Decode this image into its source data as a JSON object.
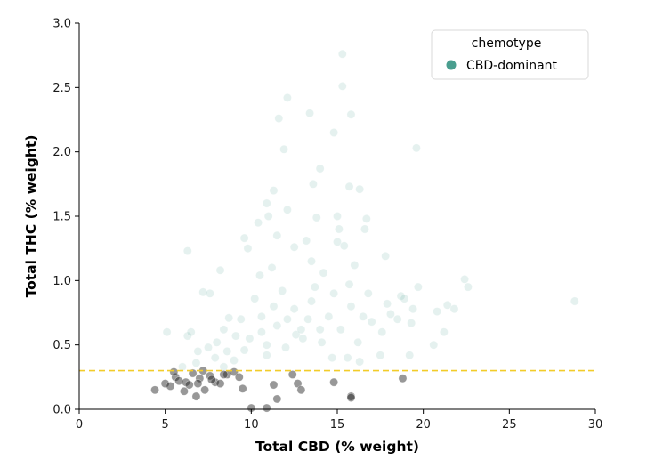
{
  "chart_data": {
    "type": "scatter",
    "xlabel": "Total CBD (% weight)",
    "ylabel": "Total THC (% weight)",
    "xlim": [
      0,
      30
    ],
    "ylim": [
      0,
      3.0
    ],
    "xticks": [
      0,
      5,
      10,
      15,
      20,
      25,
      30
    ],
    "xtick_labels": [
      "0",
      "5",
      "10",
      "15",
      "20",
      "25",
      "30"
    ],
    "yticks": [
      0.0,
      0.5,
      1.0,
      1.5,
      2.0,
      2.5,
      3.0
    ],
    "ytick_labels": [
      "0.0",
      "0.5",
      "1.0",
      "1.5",
      "2.0",
      "2.5",
      "3.0"
    ],
    "grid": false,
    "legend": {
      "title": "chemotype",
      "position": "top-right",
      "entries": [
        {
          "label": "CBD-dominant",
          "color": "#4a9e8f"
        }
      ]
    },
    "threshold_line": {
      "y": 0.3,
      "style": "dashed",
      "color": "#f2cc2a"
    },
    "series": [
      {
        "name": "CBD-dominant",
        "color": "#4a9e8f",
        "opacity": 0.14,
        "points": [
          [
            15.3,
            2.76
          ],
          [
            15.3,
            2.51
          ],
          [
            12.1,
            2.42
          ],
          [
            13.4,
            2.3
          ],
          [
            11.6,
            2.26
          ],
          [
            15.8,
            2.29
          ],
          [
            14.8,
            2.15
          ],
          [
            19.6,
            2.03
          ],
          [
            11.9,
            2.02
          ],
          [
            14.0,
            1.87
          ],
          [
            13.6,
            1.75
          ],
          [
            11.3,
            1.7
          ],
          [
            15.7,
            1.73
          ],
          [
            16.3,
            1.71
          ],
          [
            10.9,
            1.6
          ],
          [
            12.1,
            1.55
          ],
          [
            11.0,
            1.5
          ],
          [
            13.8,
            1.49
          ],
          [
            15.0,
            1.5
          ],
          [
            16.7,
            1.48
          ],
          [
            10.4,
            1.45
          ],
          [
            15.1,
            1.4
          ],
          [
            16.6,
            1.4
          ],
          [
            15.0,
            1.3
          ],
          [
            9.6,
            1.33
          ],
          [
            11.5,
            1.35
          ],
          [
            13.2,
            1.31
          ],
          [
            6.3,
            1.23
          ],
          [
            17.8,
            1.19
          ],
          [
            9.8,
            1.25
          ],
          [
            12.5,
            1.26
          ],
          [
            15.4,
            1.27
          ],
          [
            11.2,
            1.1
          ],
          [
            10.5,
            1.04
          ],
          [
            13.5,
            1.15
          ],
          [
            16.0,
            1.12
          ],
          [
            14.2,
            1.06
          ],
          [
            8.2,
            1.08
          ],
          [
            7.2,
            0.91
          ],
          [
            7.6,
            0.9
          ],
          [
            18.7,
            0.88
          ],
          [
            19.7,
            0.95
          ],
          [
            22.6,
            0.95
          ],
          [
            22.4,
            1.01
          ],
          [
            21.4,
            0.81
          ],
          [
            28.8,
            0.84
          ],
          [
            20.8,
            0.76
          ],
          [
            21.8,
            0.78
          ],
          [
            5.1,
            0.6
          ],
          [
            6.3,
            0.57
          ],
          [
            6.5,
            0.6
          ],
          [
            6.9,
            0.45
          ],
          [
            7.5,
            0.48
          ],
          [
            8.0,
            0.52
          ],
          [
            8.4,
            0.62
          ],
          [
            8.7,
            0.71
          ],
          [
            9.4,
            0.7
          ],
          [
            9.1,
            0.57
          ],
          [
            10.6,
            0.72
          ],
          [
            10.2,
            0.86
          ],
          [
            21.2,
            0.6
          ],
          [
            17.5,
            0.42
          ],
          [
            16.3,
            0.37
          ],
          [
            19.2,
            0.42
          ],
          [
            20.6,
            0.5
          ],
          [
            14.7,
            0.4
          ],
          [
            15.6,
            0.4
          ],
          [
            9.0,
            0.38
          ],
          [
            8.4,
            0.33
          ],
          [
            6.8,
            0.36
          ],
          [
            7.9,
            0.4
          ],
          [
            6.0,
            0.33
          ],
          [
            11.5,
            0.65
          ],
          [
            12.5,
            0.78
          ],
          [
            13.5,
            0.84
          ],
          [
            14.8,
            0.9
          ],
          [
            15.7,
            0.97
          ],
          [
            11.8,
            0.92
          ],
          [
            12.6,
            0.58
          ],
          [
            13.0,
            0.55
          ],
          [
            12.0,
            0.48
          ],
          [
            10.9,
            0.42
          ],
          [
            14.0,
            0.62
          ],
          [
            16.5,
            0.72
          ],
          [
            17.0,
            0.68
          ],
          [
            18.1,
            0.74
          ],
          [
            18.5,
            0.7
          ],
          [
            19.4,
            0.78
          ],
          [
            13.3,
            0.7
          ],
          [
            11.3,
            0.8
          ],
          [
            9.9,
            0.55
          ],
          [
            10.6,
            0.6
          ],
          [
            10.9,
            0.5
          ],
          [
            15.2,
            0.62
          ],
          [
            16.2,
            0.52
          ],
          [
            17.6,
            0.6
          ],
          [
            15.8,
            0.8
          ],
          [
            14.5,
            0.72
          ],
          [
            12.9,
            0.62
          ],
          [
            9.6,
            0.46
          ],
          [
            8.6,
            0.45
          ],
          [
            14.1,
            0.52
          ],
          [
            16.8,
            0.9
          ],
          [
            17.9,
            0.82
          ],
          [
            18.9,
            0.86
          ],
          [
            19.3,
            0.67
          ],
          [
            12.1,
            0.7
          ],
          [
            13.7,
            0.95
          ]
        ]
      },
      {
        "name": "",
        "color": "#1a1a1a",
        "opacity": 0.45,
        "points": [
          [
            4.4,
            0.15
          ],
          [
            5.0,
            0.2
          ],
          [
            5.3,
            0.18
          ],
          [
            5.6,
            0.25
          ],
          [
            5.8,
            0.22
          ],
          [
            6.1,
            0.14
          ],
          [
            6.2,
            0.21
          ],
          [
            6.4,
            0.19
          ],
          [
            6.6,
            0.28
          ],
          [
            6.8,
            0.1
          ],
          [
            7.0,
            0.24
          ],
          [
            7.3,
            0.15
          ],
          [
            7.6,
            0.26
          ],
          [
            7.9,
            0.21
          ],
          [
            8.2,
            0.2
          ],
          [
            8.6,
            0.27
          ],
          [
            9.0,
            0.29
          ],
          [
            9.3,
            0.25
          ],
          [
            9.5,
            0.16
          ],
          [
            10.0,
            0.01
          ],
          [
            11.3,
            0.19
          ],
          [
            11.5,
            0.08
          ],
          [
            12.4,
            0.27
          ],
          [
            12.7,
            0.2
          ],
          [
            12.9,
            0.15
          ],
          [
            14.8,
            0.21
          ],
          [
            15.8,
            0.1
          ],
          [
            15.8,
            0.09
          ],
          [
            18.8,
            0.24
          ],
          [
            5.5,
            0.29
          ],
          [
            7.2,
            0.3
          ],
          [
            8.4,
            0.27
          ],
          [
            6.9,
            0.2
          ],
          [
            7.7,
            0.23
          ],
          [
            10.9,
            0.01
          ]
        ]
      }
    ]
  }
}
